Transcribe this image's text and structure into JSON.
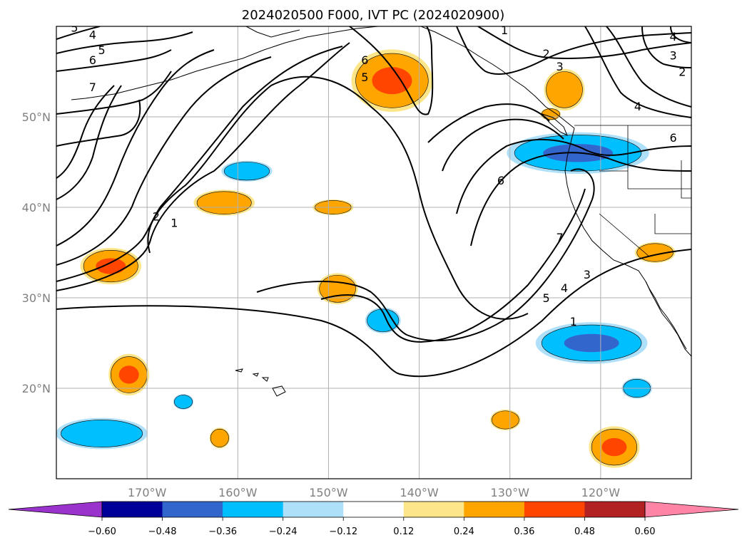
{
  "chart_data": {
    "type": "contour-map",
    "title": "2024020500 F000, IVT PC (2024020900)",
    "lon_range": [
      -180,
      -110
    ],
    "lat_range": [
      10,
      60
    ],
    "x_ticks": [
      {
        "value": -170,
        "label": "170°W"
      },
      {
        "value": -160,
        "label": "160°W"
      },
      {
        "value": -150,
        "label": "150°W"
      },
      {
        "value": -140,
        "label": "140°W"
      },
      {
        "value": -130,
        "label": "130°W"
      },
      {
        "value": -120,
        "label": "120°W"
      }
    ],
    "y_ticks": [
      {
        "value": 20,
        "label": "20°N"
      },
      {
        "value": 30,
        "label": "30°N"
      },
      {
        "value": 40,
        "label": "40°N"
      },
      {
        "value": 50,
        "label": "50°N"
      }
    ],
    "grid": true,
    "colorbar": {
      "position": "bottom",
      "extend": "both",
      "bounds": [
        -0.6,
        -0.48,
        -0.36,
        -0.24,
        -0.12,
        0.12,
        0.24,
        0.36,
        0.48,
        0.6
      ],
      "tick_labels": [
        "−0.60",
        "−0.48",
        "−0.36",
        "−0.24",
        "−0.12",
        "0.12",
        "0.24",
        "0.36",
        "0.48",
        "0.60"
      ],
      "colors": [
        "#9933cc",
        "#000099",
        "#3366cc",
        "#00bfff",
        "#aee0fa",
        "#ffffff",
        "#fde68a",
        "#ffa500",
        "#ff4500",
        "#b22222",
        "#ff85a6"
      ]
    },
    "contour_labels": [
      {
        "text": "5",
        "lon": -178.0,
        "lat": 59.9
      },
      {
        "text": "4",
        "lon": -176.0,
        "lat": 59.1
      },
      {
        "text": "5",
        "lon": -175.0,
        "lat": 57.4
      },
      {
        "text": "6",
        "lon": -176.0,
        "lat": 56.3
      },
      {
        "text": "7",
        "lon": -176.0,
        "lat": 53.3
      },
      {
        "text": "2",
        "lon": -169.0,
        "lat": 39.0
      },
      {
        "text": "1",
        "lon": -167.0,
        "lat": 38.3
      },
      {
        "text": "6",
        "lon": -146.0,
        "lat": 56.3
      },
      {
        "text": "5",
        "lon": -146.0,
        "lat": 54.4
      },
      {
        "text": "1",
        "lon": -130.6,
        "lat": 59.6
      },
      {
        "text": "2",
        "lon": -126.0,
        "lat": 57.0
      },
      {
        "text": "3",
        "lon": -124.5,
        "lat": 55.6
      },
      {
        "text": "6",
        "lon": -131.0,
        "lat": 43.0
      },
      {
        "text": "7",
        "lon": -124.5,
        "lat": 36.7
      },
      {
        "text": "3",
        "lon": -121.5,
        "lat": 32.6
      },
      {
        "text": "4",
        "lon": -124.0,
        "lat": 31.1
      },
      {
        "text": "5",
        "lon": -126.0,
        "lat": 30.0
      },
      {
        "text": "1",
        "lon": -123.0,
        "lat": 27.4
      },
      {
        "text": "4",
        "lon": -112.0,
        "lat": 58.9
      },
      {
        "text": "3",
        "lon": -112.0,
        "lat": 56.8
      },
      {
        "text": "2",
        "lon": -111.0,
        "lat": 55.0
      },
      {
        "text": "4",
        "lon": -115.9,
        "lat": 51.2
      },
      {
        "text": "6",
        "lon": -112.0,
        "lat": 47.7
      }
    ],
    "shaded_regions": [
      {
        "name": "orange-blob-gulf-of-alaska",
        "bin": 0.48,
        "value": 0.45,
        "center": [
          -143,
          54
        ],
        "size": [
          8,
          6
        ]
      },
      {
        "name": "orange-blob-bc-coast",
        "bin": 0.36,
        "value": 0.3,
        "center": [
          -124,
          53
        ],
        "size": [
          4,
          4
        ]
      },
      {
        "name": "blue-blob-pacific-northwest",
        "bin": -0.48,
        "value": -0.4,
        "center": [
          -122.5,
          46
        ],
        "size": [
          14,
          4
        ]
      },
      {
        "name": "blue-blob-north-pacific",
        "bin": -0.36,
        "value": -0.3,
        "center": [
          -159,
          44
        ],
        "size": [
          5,
          2
        ]
      },
      {
        "name": "orange-blob-160w-40n",
        "bin": 0.36,
        "value": 0.3,
        "center": [
          -161.5,
          40.5
        ],
        "size": [
          6,
          2.5
        ]
      },
      {
        "name": "orange-blob-150w-40n",
        "bin": 0.36,
        "value": 0.28,
        "center": [
          -149.5,
          40
        ],
        "size": [
          4,
          1.5
        ]
      },
      {
        "name": "orange-blob-175w-33n",
        "bin": 0.48,
        "value": 0.4,
        "center": [
          -174,
          33.5
        ],
        "size": [
          6,
          3.5
        ]
      },
      {
        "name": "orange-blob-149w-31n",
        "bin": 0.36,
        "value": 0.32,
        "center": [
          -149,
          31
        ],
        "size": [
          4,
          3
        ]
      },
      {
        "name": "blue-blob-144w-28n",
        "bin": -0.36,
        "value": -0.28,
        "center": [
          -144,
          27.5
        ],
        "size": [
          3.5,
          2.5
        ]
      },
      {
        "name": "blue-blob-southern-california-offshore",
        "bin": -0.48,
        "value": -0.4,
        "center": [
          -121,
          25
        ],
        "size": [
          11,
          4
        ]
      },
      {
        "name": "orange-blob-172w-22n",
        "bin": 0.48,
        "value": 0.4,
        "center": [
          -172,
          21.5
        ],
        "size": [
          4,
          4
        ]
      },
      {
        "name": "blue-blob-subtropics-west",
        "bin": -0.36,
        "value": -0.3,
        "center": [
          -175,
          15
        ],
        "size": [
          9,
          3
        ]
      },
      {
        "name": "blue-blob-166w-18n",
        "bin": -0.36,
        "value": -0.25,
        "center": [
          -166,
          18.5
        ],
        "size": [
          2,
          1.5
        ]
      },
      {
        "name": "orange-blob-162w-15n",
        "bin": 0.36,
        "value": 0.28,
        "center": [
          -162,
          14.5
        ],
        "size": [
          2,
          2
        ]
      },
      {
        "name": "orange-blob-130w-17n",
        "bin": 0.36,
        "value": 0.25,
        "center": [
          -130.5,
          16.5
        ],
        "size": [
          3,
          2
        ]
      },
      {
        "name": "blue-blob-116w-20n",
        "bin": -0.36,
        "value": -0.3,
        "center": [
          -116,
          20
        ],
        "size": [
          3,
          2
        ]
      },
      {
        "name": "orange-blob-118w-14n",
        "bin": 0.48,
        "value": 0.42,
        "center": [
          -118.5,
          13.5
        ],
        "size": [
          5,
          4
        ]
      },
      {
        "name": "orange-blob-115w-35n",
        "bin": 0.36,
        "value": 0.3,
        "center": [
          -114,
          35
        ],
        "size": [
          4,
          2
        ]
      },
      {
        "name": "orange-blob-124w-50n",
        "bin": 0.36,
        "value": 0.27,
        "center": [
          -125.5,
          50.3
        ],
        "size": [
          2,
          1.2
        ]
      }
    ]
  }
}
